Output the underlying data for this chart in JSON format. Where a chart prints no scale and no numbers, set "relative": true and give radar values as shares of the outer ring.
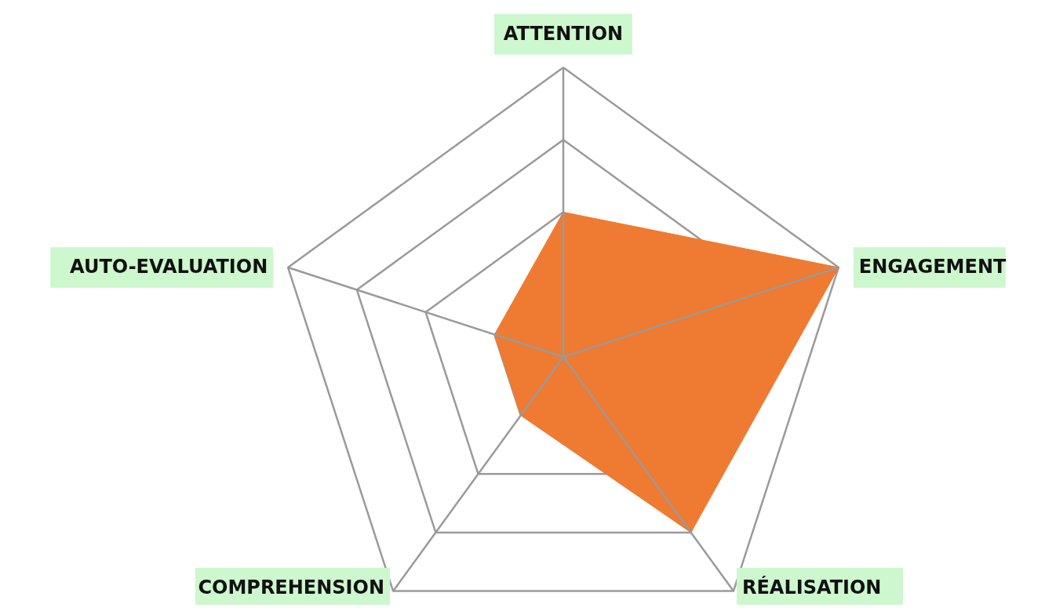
{
  "chart_data": {
    "type": "radar",
    "relative": true,
    "categories": [
      "ATTENTION",
      "ENGAGEMENT",
      "RÉALISATION",
      "COMPREHENSION",
      "AUTO-EVALUATION"
    ],
    "series": [
      {
        "color": "#ef7a32",
        "values": [
          0.5,
          1,
          0.75,
          0.25,
          0.25
        ]
      }
    ]
  }
}
